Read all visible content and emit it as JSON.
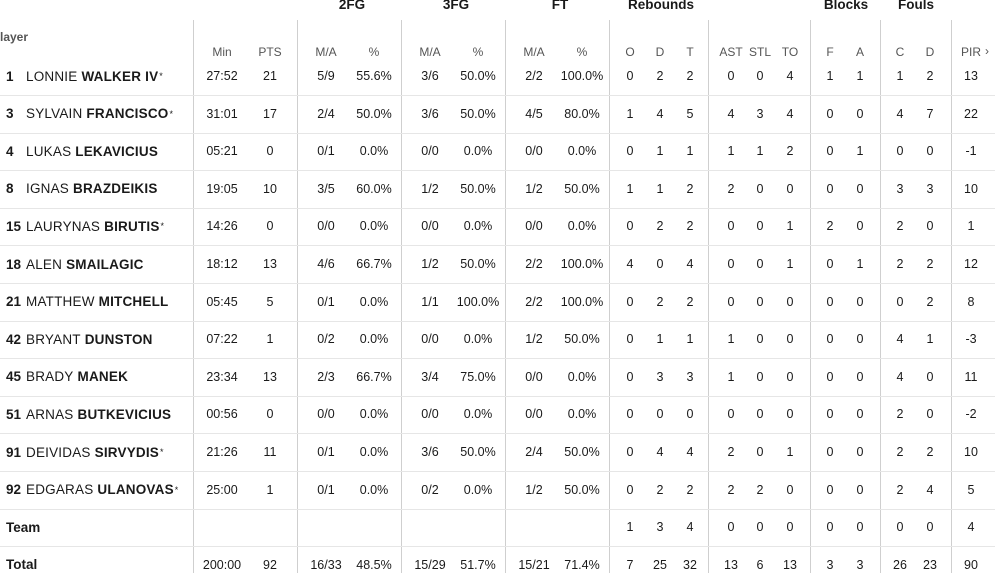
{
  "header": {
    "player_label": "layer",
    "groups": {
      "fg2": "2FG",
      "fg3": "3FG",
      "ft": "FT",
      "rebounds": "Rebounds",
      "blocks": "Blocks",
      "fouls": "Fouls"
    },
    "columns": {
      "min": "Min",
      "pts": "PTS",
      "fg2_ma": "M/A",
      "fg2_pct": "%",
      "fg3_ma": "M/A",
      "fg3_pct": "%",
      "ft_ma": "M/A",
      "ft_pct": "%",
      "reb_o": "O",
      "reb_d": "D",
      "reb_t": "T",
      "ast": "AST",
      "stl": "STL",
      "to": "TO",
      "blk_f": "F",
      "blk_a": "A",
      "foul_c": "C",
      "foul_d": "D",
      "pir": "PIR"
    },
    "scroll_icon": "chevron-right-icon"
  },
  "players": [
    {
      "num": "1",
      "first": "LONNIE",
      "last": "WALKER IV",
      "starter": "*",
      "min": "27:52",
      "pts": "21",
      "fg2_ma": "5/9",
      "fg2_pct": "55.6%",
      "fg3_ma": "3/6",
      "fg3_pct": "50.0%",
      "ft_ma": "2/2",
      "ft_pct": "100.0%",
      "reb_o": "0",
      "reb_d": "2",
      "reb_t": "2",
      "ast": "0",
      "stl": "0",
      "to": "4",
      "blk_f": "1",
      "blk_a": "1",
      "foul_c": "1",
      "foul_d": "2",
      "pir": "13"
    },
    {
      "num": "3",
      "first": "SYLVAIN",
      "last": "FRANCISCO",
      "starter": "*",
      "min": "31:01",
      "pts": "17",
      "fg2_ma": "2/4",
      "fg2_pct": "50.0%",
      "fg3_ma": "3/6",
      "fg3_pct": "50.0%",
      "ft_ma": "4/5",
      "ft_pct": "80.0%",
      "reb_o": "1",
      "reb_d": "4",
      "reb_t": "5",
      "ast": "4",
      "stl": "3",
      "to": "4",
      "blk_f": "0",
      "blk_a": "0",
      "foul_c": "4",
      "foul_d": "7",
      "pir": "22"
    },
    {
      "num": "4",
      "first": "LUKAS",
      "last": "LEKAVICIUS",
      "starter": "",
      "min": "05:21",
      "pts": "0",
      "fg2_ma": "0/1",
      "fg2_pct": "0.0%",
      "fg3_ma": "0/0",
      "fg3_pct": "0.0%",
      "ft_ma": "0/0",
      "ft_pct": "0.0%",
      "reb_o": "0",
      "reb_d": "1",
      "reb_t": "1",
      "ast": "1",
      "stl": "1",
      "to": "2",
      "blk_f": "0",
      "blk_a": "1",
      "foul_c": "0",
      "foul_d": "0",
      "pir": "-1"
    },
    {
      "num": "8",
      "first": "IGNAS",
      "last": "BRAZDEIKIS",
      "starter": "",
      "min": "19:05",
      "pts": "10",
      "fg2_ma": "3/5",
      "fg2_pct": "60.0%",
      "fg3_ma": "1/2",
      "fg3_pct": "50.0%",
      "ft_ma": "1/2",
      "ft_pct": "50.0%",
      "reb_o": "1",
      "reb_d": "1",
      "reb_t": "2",
      "ast": "2",
      "stl": "0",
      "to": "0",
      "blk_f": "0",
      "blk_a": "0",
      "foul_c": "3",
      "foul_d": "3",
      "pir": "10"
    },
    {
      "num": "15",
      "first": "LAURYNAS",
      "last": "BIRUTIS",
      "starter": "*",
      "min": "14:26",
      "pts": "0",
      "fg2_ma": "0/0",
      "fg2_pct": "0.0%",
      "fg3_ma": "0/0",
      "fg3_pct": "0.0%",
      "ft_ma": "0/0",
      "ft_pct": "0.0%",
      "reb_o": "0",
      "reb_d": "2",
      "reb_t": "2",
      "ast": "0",
      "stl": "0",
      "to": "1",
      "blk_f": "2",
      "blk_a": "0",
      "foul_c": "2",
      "foul_d": "0",
      "pir": "1"
    },
    {
      "num": "18",
      "first": "ALEN",
      "last": "SMAILAGIC",
      "starter": "",
      "min": "18:12",
      "pts": "13",
      "fg2_ma": "4/6",
      "fg2_pct": "66.7%",
      "fg3_ma": "1/2",
      "fg3_pct": "50.0%",
      "ft_ma": "2/2",
      "ft_pct": "100.0%",
      "reb_o": "4",
      "reb_d": "0",
      "reb_t": "4",
      "ast": "0",
      "stl": "0",
      "to": "1",
      "blk_f": "0",
      "blk_a": "1",
      "foul_c": "2",
      "foul_d": "2",
      "pir": "12"
    },
    {
      "num": "21",
      "first": "MATTHEW",
      "last": "MITCHELL",
      "starter": "",
      "min": "05:45",
      "pts": "5",
      "fg2_ma": "0/1",
      "fg2_pct": "0.0%",
      "fg3_ma": "1/1",
      "fg3_pct": "100.0%",
      "ft_ma": "2/2",
      "ft_pct": "100.0%",
      "reb_o": "0",
      "reb_d": "2",
      "reb_t": "2",
      "ast": "0",
      "stl": "0",
      "to": "0",
      "blk_f": "0",
      "blk_a": "0",
      "foul_c": "0",
      "foul_d": "2",
      "pir": "8"
    },
    {
      "num": "42",
      "first": "BRYANT",
      "last": "DUNSTON",
      "starter": "",
      "min": "07:22",
      "pts": "1",
      "fg2_ma": "0/2",
      "fg2_pct": "0.0%",
      "fg3_ma": "0/0",
      "fg3_pct": "0.0%",
      "ft_ma": "1/2",
      "ft_pct": "50.0%",
      "reb_o": "0",
      "reb_d": "1",
      "reb_t": "1",
      "ast": "1",
      "stl": "0",
      "to": "0",
      "blk_f": "0",
      "blk_a": "0",
      "foul_c": "4",
      "foul_d": "1",
      "pir": "-3"
    },
    {
      "num": "45",
      "first": "BRADY",
      "last": "MANEK",
      "starter": "",
      "min": "23:34",
      "pts": "13",
      "fg2_ma": "2/3",
      "fg2_pct": "66.7%",
      "fg3_ma": "3/4",
      "fg3_pct": "75.0%",
      "ft_ma": "0/0",
      "ft_pct": "0.0%",
      "reb_o": "0",
      "reb_d": "3",
      "reb_t": "3",
      "ast": "1",
      "stl": "0",
      "to": "0",
      "blk_f": "0",
      "blk_a": "0",
      "foul_c": "4",
      "foul_d": "0",
      "pir": "11"
    },
    {
      "num": "51",
      "first": "ARNAS",
      "last": "BUTKEVICIUS",
      "starter": "",
      "min": "00:56",
      "pts": "0",
      "fg2_ma": "0/0",
      "fg2_pct": "0.0%",
      "fg3_ma": "0/0",
      "fg3_pct": "0.0%",
      "ft_ma": "0/0",
      "ft_pct": "0.0%",
      "reb_o": "0",
      "reb_d": "0",
      "reb_t": "0",
      "ast": "0",
      "stl": "0",
      "to": "0",
      "blk_f": "0",
      "blk_a": "0",
      "foul_c": "2",
      "foul_d": "0",
      "pir": "-2"
    },
    {
      "num": "91",
      "first": "DEIVIDAS",
      "last": "SIRVYDIS",
      "starter": "*",
      "min": "21:26",
      "pts": "11",
      "fg2_ma": "0/1",
      "fg2_pct": "0.0%",
      "fg3_ma": "3/6",
      "fg3_pct": "50.0%",
      "ft_ma": "2/4",
      "ft_pct": "50.0%",
      "reb_o": "0",
      "reb_d": "4",
      "reb_t": "4",
      "ast": "2",
      "stl": "0",
      "to": "1",
      "blk_f": "0",
      "blk_a": "0",
      "foul_c": "2",
      "foul_d": "2",
      "pir": "10"
    },
    {
      "num": "92",
      "first": "EDGARAS",
      "last": "ULANOVAS",
      "starter": "*",
      "min": "25:00",
      "pts": "1",
      "fg2_ma": "0/1",
      "fg2_pct": "0.0%",
      "fg3_ma": "0/2",
      "fg3_pct": "0.0%",
      "ft_ma": "1/2",
      "ft_pct": "50.0%",
      "reb_o": "0",
      "reb_d": "2",
      "reb_t": "2",
      "ast": "2",
      "stl": "2",
      "to": "0",
      "blk_f": "0",
      "blk_a": "0",
      "foul_c": "2",
      "foul_d": "4",
      "pir": "5"
    }
  ],
  "team": {
    "label": "Team",
    "reb_o": "1",
    "reb_d": "3",
    "reb_t": "4",
    "ast": "0",
    "stl": "0",
    "to": "0",
    "blk_f": "0",
    "blk_a": "0",
    "foul_c": "0",
    "foul_d": "0",
    "pir": "4"
  },
  "total": {
    "label": "Total",
    "min": "200:00",
    "pts": "92",
    "fg2_ma": "16/33",
    "fg2_pct": "48.5%",
    "fg3_ma": "15/29",
    "fg3_pct": "51.7%",
    "ft_ma": "15/21",
    "ft_pct": "71.4%",
    "reb_o": "7",
    "reb_d": "25",
    "reb_t": "32",
    "ast": "13",
    "stl": "6",
    "to": "13",
    "blk_f": "3",
    "blk_a": "3",
    "foul_c": "26",
    "foul_d": "23",
    "pir": "90"
  }
}
